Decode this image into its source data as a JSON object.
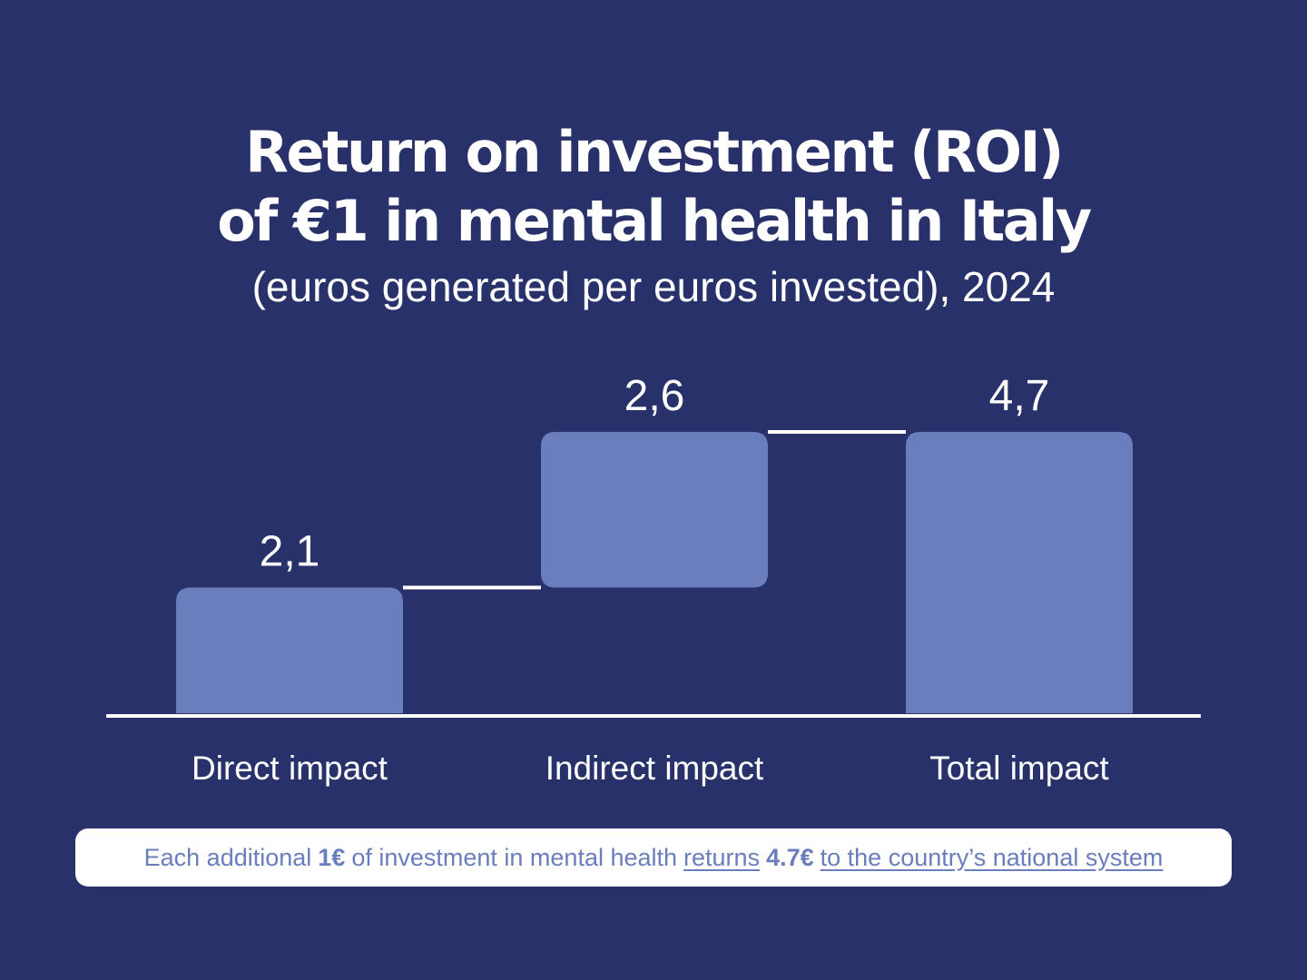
{
  "title": {
    "line1": "Return on investment (ROI)",
    "line2": "of €1 in mental health in Italy"
  },
  "subtitle": "(euros generated per euros invested), 2024",
  "colors": {
    "background": "#28316a",
    "bar": "#6a7dbc",
    "text": "#ffffff",
    "footnote_text": "#6a7dbc"
  },
  "chart_data": {
    "type": "bar",
    "subtype": "waterfall",
    "categories": [
      "Direct impact",
      "Indirect impact",
      "Total impact"
    ],
    "values": [
      2.1,
      2.6,
      4.7
    ],
    "value_labels": [
      "2,1",
      "2,6",
      "4,7"
    ],
    "title": "Return on investment (ROI) of €1 in mental health in Italy",
    "subtitle": "(euros generated per euros invested), 2024",
    "xlabel": "",
    "ylabel": "",
    "ylim": [
      0,
      4.7
    ],
    "grid": false,
    "legend": "none"
  },
  "footnote": {
    "part1": "Each additional",
    "amount1": "1€",
    "part2": "of investment in mental health",
    "link1": "returns",
    "amount2": "4.7€",
    "link2": "to the country’s national system"
  }
}
